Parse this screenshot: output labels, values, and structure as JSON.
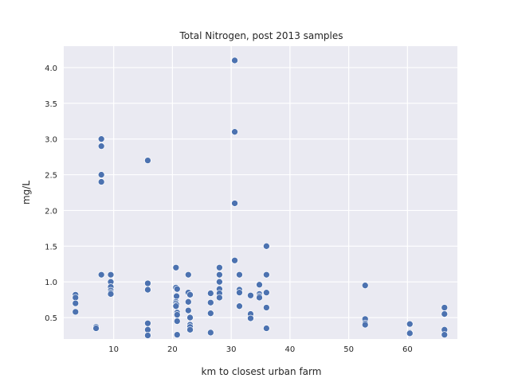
{
  "chart_data": {
    "type": "scatter",
    "title": "Total Nitrogen, post 2013 samples",
    "xlabel": "km to closest urban farm",
    "ylabel": "mg/L",
    "xlim": [
      1.5,
      68.5
    ],
    "ylim": [
      0.2,
      4.3
    ],
    "xticks": [
      10,
      20,
      30,
      40,
      50,
      60
    ],
    "yticks": [
      0.5,
      1.0,
      1.5,
      2.0,
      2.5,
      3.0,
      3.5,
      4.0
    ],
    "xtick_labels": [
      "10",
      "20",
      "30",
      "40",
      "50",
      "60"
    ],
    "ytick_labels": [
      "0.5",
      "1.0",
      "1.5",
      "2.0",
      "2.5",
      "3.0",
      "3.5",
      "4.0"
    ],
    "grid": true,
    "background_color": "#eaeaf2",
    "point_color": "#4c72b0",
    "points": [
      {
        "x": 3.5,
        "y": 0.82
      },
      {
        "x": 3.5,
        "y": 0.78
      },
      {
        "x": 3.5,
        "y": 0.7
      },
      {
        "x": 3.5,
        "y": 0.58
      },
      {
        "x": 7.0,
        "y": 0.37
      },
      {
        "x": 7.0,
        "y": 0.35
      },
      {
        "x": 7.9,
        "y": 3.0
      },
      {
        "x": 7.9,
        "y": 2.9
      },
      {
        "x": 7.9,
        "y": 2.5
      },
      {
        "x": 7.9,
        "y": 2.4
      },
      {
        "x": 7.9,
        "y": 1.1
      },
      {
        "x": 9.5,
        "y": 1.1
      },
      {
        "x": 9.5,
        "y": 1.0
      },
      {
        "x": 9.5,
        "y": 0.93
      },
      {
        "x": 9.5,
        "y": 0.88
      },
      {
        "x": 9.5,
        "y": 0.85
      },
      {
        "x": 9.5,
        "y": 0.83
      },
      {
        "x": 15.8,
        "y": 2.7
      },
      {
        "x": 15.8,
        "y": 0.98
      },
      {
        "x": 15.8,
        "y": 0.89
      },
      {
        "x": 15.8,
        "y": 0.42
      },
      {
        "x": 15.8,
        "y": 0.33
      },
      {
        "x": 15.8,
        "y": 0.25
      },
      {
        "x": 20.6,
        "y": 1.2
      },
      {
        "x": 20.6,
        "y": 0.92
      },
      {
        "x": 20.8,
        "y": 0.9
      },
      {
        "x": 20.7,
        "y": 0.8
      },
      {
        "x": 20.6,
        "y": 0.72
      },
      {
        "x": 20.6,
        "y": 0.7
      },
      {
        "x": 20.7,
        "y": 0.68
      },
      {
        "x": 20.6,
        "y": 0.66
      },
      {
        "x": 20.8,
        "y": 0.57
      },
      {
        "x": 20.8,
        "y": 0.54
      },
      {
        "x": 20.8,
        "y": 0.45
      },
      {
        "x": 20.8,
        "y": 0.26
      },
      {
        "x": 22.7,
        "y": 1.1
      },
      {
        "x": 22.7,
        "y": 0.85
      },
      {
        "x": 23.0,
        "y": 0.82
      },
      {
        "x": 22.7,
        "y": 0.72
      },
      {
        "x": 22.7,
        "y": 0.6
      },
      {
        "x": 23.0,
        "y": 0.5
      },
      {
        "x": 23.0,
        "y": 0.4
      },
      {
        "x": 23.0,
        "y": 0.37
      },
      {
        "x": 23.0,
        "y": 0.33
      },
      {
        "x": 26.5,
        "y": 0.84
      },
      {
        "x": 26.5,
        "y": 0.71
      },
      {
        "x": 26.5,
        "y": 0.56
      },
      {
        "x": 26.5,
        "y": 0.29
      },
      {
        "x": 28.0,
        "y": 1.2
      },
      {
        "x": 28.0,
        "y": 1.1
      },
      {
        "x": 28.0,
        "y": 1.0
      },
      {
        "x": 28.0,
        "y": 0.9
      },
      {
        "x": 28.0,
        "y": 0.84
      },
      {
        "x": 28.0,
        "y": 0.78
      },
      {
        "x": 30.6,
        "y": 4.1
      },
      {
        "x": 30.6,
        "y": 3.1
      },
      {
        "x": 30.6,
        "y": 2.1
      },
      {
        "x": 30.6,
        "y": 1.3
      },
      {
        "x": 31.4,
        "y": 1.1
      },
      {
        "x": 31.4,
        "y": 0.89
      },
      {
        "x": 31.4,
        "y": 0.85
      },
      {
        "x": 31.4,
        "y": 0.66
      },
      {
        "x": 33.3,
        "y": 0.81
      },
      {
        "x": 33.3,
        "y": 0.55
      },
      {
        "x": 33.3,
        "y": 0.49
      },
      {
        "x": 34.8,
        "y": 0.96
      },
      {
        "x": 34.8,
        "y": 0.83
      },
      {
        "x": 34.8,
        "y": 0.8
      },
      {
        "x": 34.8,
        "y": 0.78
      },
      {
        "x": 36.0,
        "y": 1.5
      },
      {
        "x": 36.0,
        "y": 1.1
      },
      {
        "x": 36.0,
        "y": 0.85
      },
      {
        "x": 36.0,
        "y": 0.64
      },
      {
        "x": 36.0,
        "y": 0.35
      },
      {
        "x": 52.8,
        "y": 0.95
      },
      {
        "x": 52.8,
        "y": 0.48
      },
      {
        "x": 52.8,
        "y": 0.42
      },
      {
        "x": 52.8,
        "y": 0.4
      },
      {
        "x": 60.4,
        "y": 0.41
      },
      {
        "x": 60.4,
        "y": 0.29
      },
      {
        "x": 60.4,
        "y": 0.28
      },
      {
        "x": 66.3,
        "y": 0.64
      },
      {
        "x": 66.3,
        "y": 0.55
      },
      {
        "x": 66.3,
        "y": 0.33
      },
      {
        "x": 66.3,
        "y": 0.26
      }
    ]
  }
}
